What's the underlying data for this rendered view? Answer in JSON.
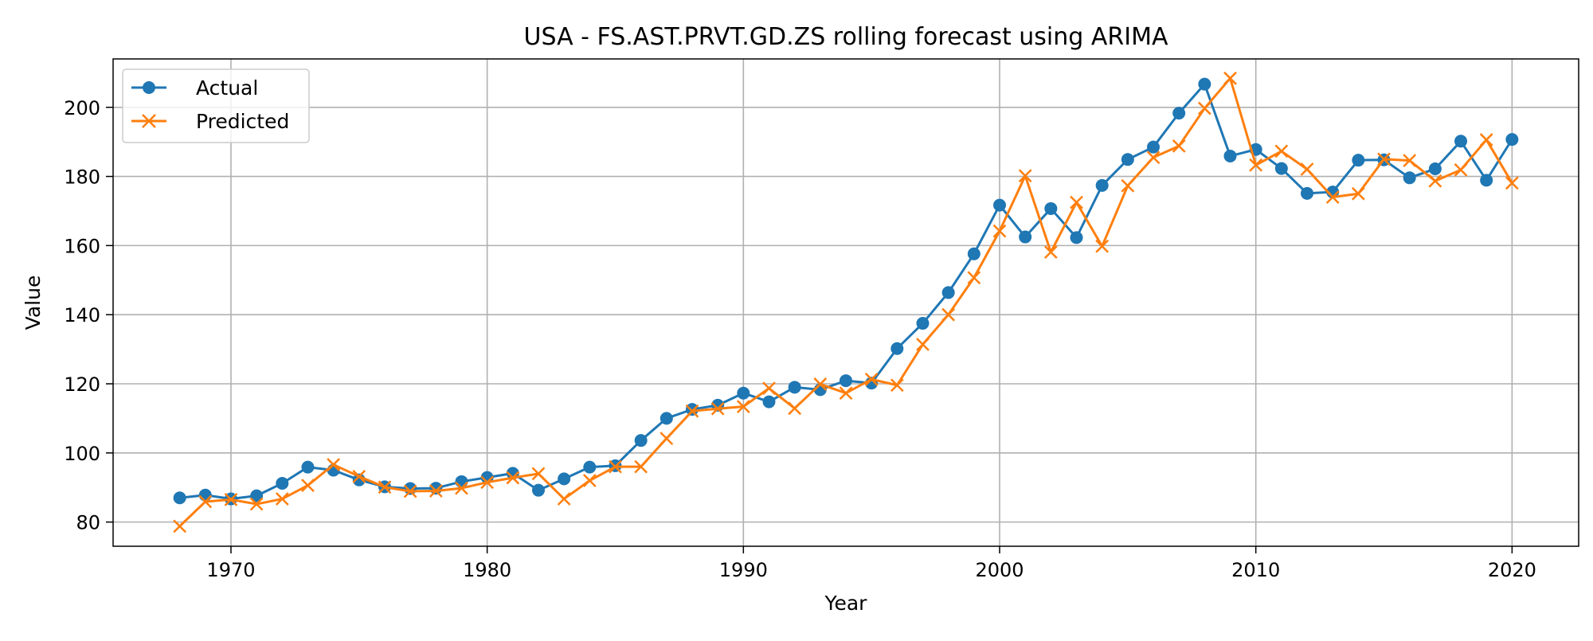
{
  "chart_data": {
    "type": "line",
    "title": "USA - FS.AST.PRVT.GD.ZS rolling forecast using ARIMA",
    "xlabel": "Year",
    "ylabel": "Value",
    "xlim": [
      1965.4,
      2022.6
    ],
    "ylim": [
      73,
      214
    ],
    "x_ticks": [
      1970,
      1980,
      1990,
      2000,
      2010,
      2020
    ],
    "y_ticks": [
      80,
      100,
      120,
      140,
      160,
      180,
      200
    ],
    "grid": true,
    "legend_position": "top-left",
    "x": [
      1968,
      1969,
      1970,
      1971,
      1972,
      1973,
      1974,
      1975,
      1976,
      1977,
      1978,
      1979,
      1980,
      1981,
      1982,
      1983,
      1984,
      1985,
      1986,
      1987,
      1988,
      1989,
      1990,
      1991,
      1992,
      1993,
      1994,
      1995,
      1996,
      1997,
      1998,
      1999,
      2000,
      2001,
      2002,
      2003,
      2004,
      2005,
      2006,
      2007,
      2008,
      2009,
      2010,
      2011,
      2012,
      2013,
      2014,
      2015,
      2016,
      2017,
      2018,
      2019,
      2020
    ],
    "series": [
      {
        "name": "Actual",
        "color": "#1f77b4",
        "marker": "circle",
        "values": [
          87.0,
          87.8,
          86.7,
          87.6,
          91.2,
          95.9,
          95.0,
          92.2,
          90.2,
          89.7,
          89.8,
          91.7,
          92.9,
          94.1,
          89.2,
          92.5,
          95.9,
          96.3,
          103.6,
          110.0,
          112.6,
          113.8,
          117.3,
          114.8,
          119.0,
          118.3,
          120.9,
          120.2,
          130.2,
          137.5,
          146.4,
          157.6,
          171.7,
          162.5,
          170.7,
          162.3,
          177.4,
          184.9,
          188.5,
          198.3,
          206.7,
          185.9,
          187.8,
          182.3,
          175.1,
          175.5,
          184.7,
          184.8,
          179.6,
          182.2,
          190.2,
          178.9,
          190.7
        ]
      },
      {
        "name": "Predicted",
        "color": "#ff7f0e",
        "marker": "x",
        "values": [
          78.8,
          85.9,
          86.5,
          85.2,
          86.7,
          90.6,
          96.6,
          93.2,
          90.1,
          88.9,
          89.0,
          89.8,
          91.5,
          92.8,
          94.0,
          86.7,
          92.0,
          96.0,
          96.0,
          104.2,
          112.1,
          112.8,
          113.4,
          118.7,
          112.9,
          119.9,
          117.3,
          121.3,
          119.6,
          131.4,
          140.0,
          150.7,
          164.2,
          180.2,
          158.1,
          172.5,
          159.8,
          177.3,
          185.5,
          188.8,
          199.7,
          208.4,
          183.3,
          187.3,
          182.1,
          174.0,
          175.0,
          185.0,
          184.6,
          178.7,
          181.9,
          190.6,
          178.1
        ]
      }
    ]
  }
}
